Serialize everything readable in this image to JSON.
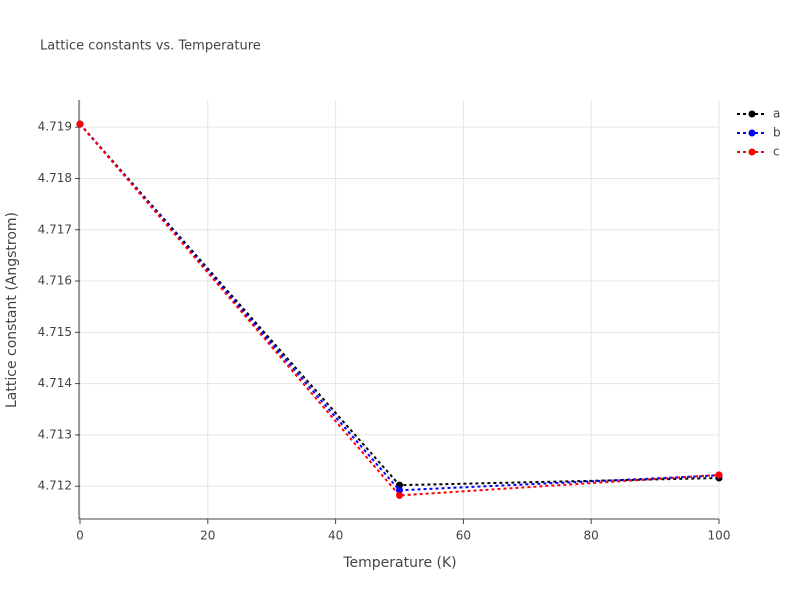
{
  "chart_data": {
    "type": "line",
    "title": "Lattice constants vs. Temperature",
    "x_label": "Temperature (K)",
    "y_label": "Lattice constant (Angstrom)",
    "x": [
      0,
      50,
      100
    ],
    "series": [
      {
        "name": "a",
        "color": "#000000",
        "values": [
          4.71906,
          4.71202,
          4.71216
        ]
      },
      {
        "name": "b",
        "color": "#0000ff",
        "values": [
          4.71906,
          4.71192,
          4.71221
        ]
      },
      {
        "name": "c",
        "color": "#ff0000",
        "values": [
          4.71906,
          4.71182,
          4.71222
        ]
      }
    ],
    "xlim": [
      0,
      100
    ],
    "xticks": [
      0,
      20,
      40,
      60,
      80,
      100
    ],
    "ylim": [
      4.71136,
      4.71953
    ],
    "yticks": [
      4.712,
      4.713,
      4.714,
      4.715,
      4.716,
      4.717,
      4.718,
      4.719
    ],
    "grid": true,
    "legend": "top-right"
  }
}
